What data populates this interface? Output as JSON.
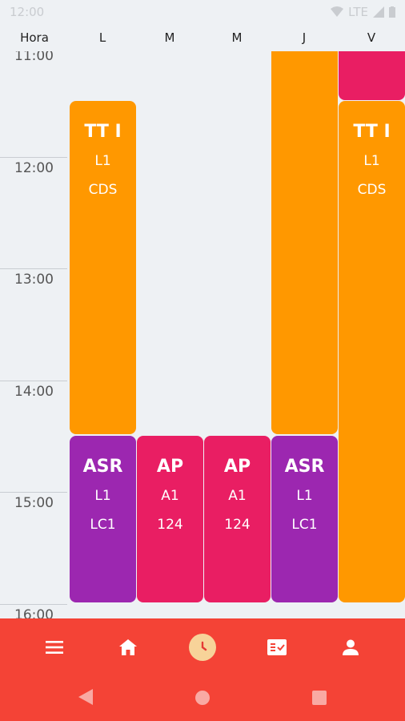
{
  "status_bar": {
    "time": "12:00",
    "network": "LTE"
  },
  "header": {
    "hour_label": "Hora",
    "days": [
      "L",
      "M",
      "M",
      "J",
      "V"
    ]
  },
  "hours": [
    "11:00",
    "12:00",
    "13:00",
    "14:00",
    "15:00",
    "16:00"
  ],
  "events": [
    {
      "day": "L",
      "title": "TT I",
      "line1": "L1",
      "line2": "CDS",
      "color": "#ff9800"
    },
    {
      "day": "L",
      "title": "ASR",
      "line1": "L1",
      "line2": "LC1",
      "color": "#9c27b0"
    },
    {
      "day": "M",
      "title": "AP",
      "line1": "A1",
      "line2": "124",
      "color": "#e91e63"
    },
    {
      "day": "M",
      "title": "AP",
      "line1": "A1",
      "line2": "124",
      "color": "#e91e63"
    },
    {
      "day": "J",
      "title": "ASR",
      "line1": "L1",
      "line2": "LC1",
      "color": "#9c27b0"
    },
    {
      "day": "V",
      "title": "TT I",
      "line1": "L1",
      "line2": "CDS",
      "color": "#ff9800"
    }
  ],
  "colors": {
    "nav_bar": "#f44336",
    "orange": "#ff9800",
    "purple": "#9c27b0",
    "pink": "#e91e63",
    "active_tab": "#f7d399"
  },
  "bottom_nav": {
    "items": [
      "menu-icon",
      "home-icon",
      "clock-icon",
      "checklist-icon",
      "profile-icon"
    ],
    "active": "clock-icon"
  },
  "system_nav": {
    "items": [
      "back-icon",
      "home-circle-icon",
      "recents-icon"
    ]
  }
}
